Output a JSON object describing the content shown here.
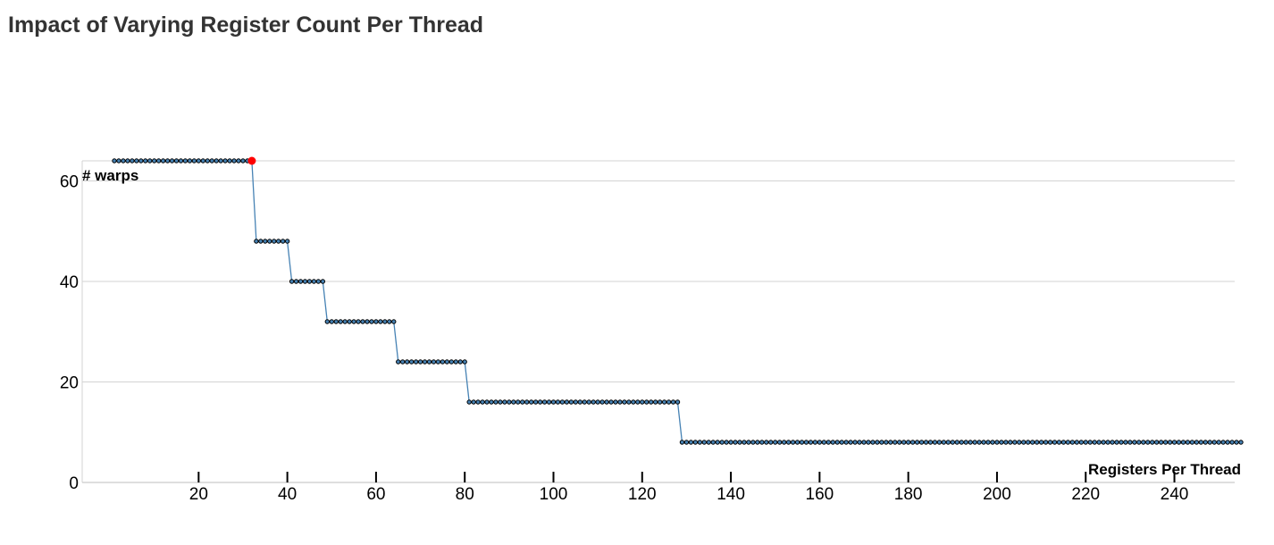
{
  "chart_data": {
    "type": "line",
    "title": "Impact of Varying Register Count Per Thread",
    "xlabel": "Registers Per Thread",
    "ylabel": "# warps",
    "xlim": [
      1,
      255
    ],
    "ylim": [
      0,
      64
    ],
    "x_ticks": [
      20,
      40,
      60,
      80,
      100,
      120,
      140,
      160,
      180,
      200,
      220,
      240
    ],
    "y_ticks": [
      0,
      20,
      40,
      60
    ],
    "grid": true,
    "x_range": [
      1,
      255
    ],
    "steps": [
      {
        "from": 1,
        "to": 32,
        "value": 64
      },
      {
        "from": 33,
        "to": 40,
        "value": 48
      },
      {
        "from": 41,
        "to": 48,
        "value": 40
      },
      {
        "from": 49,
        "to": 64,
        "value": 32
      },
      {
        "from": 65,
        "to": 80,
        "value": 24
      },
      {
        "from": 81,
        "to": 128,
        "value": 16
      },
      {
        "from": 129,
        "to": 255,
        "value": 8
      }
    ],
    "highlight": {
      "x": 32,
      "y": 64
    },
    "colors": {
      "line": "#4682b4",
      "point": "#000000",
      "highlight": "#ff0000",
      "grid": "#d3d3d3",
      "axis": "#000000"
    }
  }
}
